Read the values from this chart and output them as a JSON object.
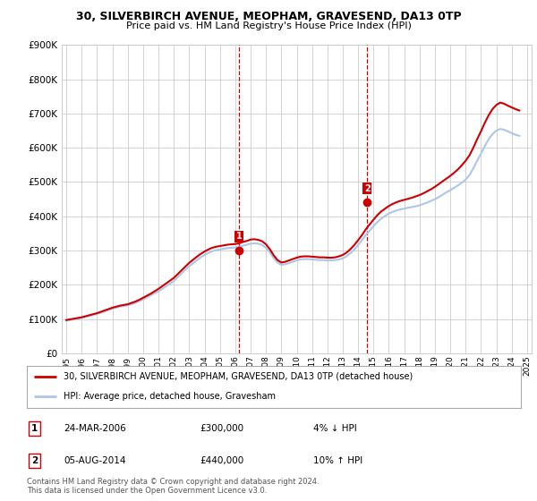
{
  "title": "30, SILVERBIRCH AVENUE, MEOPHAM, GRAVESEND, DA13 0TP",
  "subtitle": "Price paid vs. HM Land Registry's House Price Index (HPI)",
  "legend_line1": "30, SILVERBIRCH AVENUE, MEOPHAM, GRAVESEND, DA13 0TP (detached house)",
  "legend_line2": "HPI: Average price, detached house, Gravesham",
  "transaction1_date": "24-MAR-2006",
  "transaction1_price": "£300,000",
  "transaction1_hpi": "4% ↓ HPI",
  "transaction2_date": "05-AUG-2014",
  "transaction2_price": "£440,000",
  "transaction2_hpi": "10% ↑ HPI",
  "footer": "Contains HM Land Registry data © Crown copyright and database right 2024.\nThis data is licensed under the Open Government Licence v3.0.",
  "hpi_color": "#aec6e8",
  "price_color": "#cc0000",
  "marker_color": "#cc0000",
  "dashed_line_color": "#cc0000",
  "background_color": "#ffffff",
  "plot_bg_color": "#ffffff",
  "grid_color": "#cccccc",
  "ylim": [
    0,
    900000
  ],
  "yticks": [
    0,
    100000,
    200000,
    300000,
    400000,
    500000,
    600000,
    700000,
    800000,
    900000
  ],
  "ytick_labels": [
    "£0",
    "£100K",
    "£200K",
    "£300K",
    "£400K",
    "£500K",
    "£600K",
    "£700K",
    "£800K",
    "£900K"
  ],
  "x_start_year": 1995,
  "x_end_year": 2025,
  "transaction1_year": 2006.23,
  "transaction2_year": 2014.59,
  "transaction1_price_val": 300000,
  "transaction2_price_val": 440000,
  "hpi_years": [
    1995,
    1995.25,
    1995.5,
    1995.75,
    1996,
    1996.25,
    1996.5,
    1996.75,
    1997,
    1997.25,
    1997.5,
    1997.75,
    1998,
    1998.25,
    1998.5,
    1998.75,
    1999,
    1999.25,
    1999.5,
    1999.75,
    2000,
    2000.25,
    2000.5,
    2000.75,
    2001,
    2001.25,
    2001.5,
    2001.75,
    2002,
    2002.25,
    2002.5,
    2002.75,
    2003,
    2003.25,
    2003.5,
    2003.75,
    2004,
    2004.25,
    2004.5,
    2004.75,
    2005,
    2005.25,
    2005.5,
    2005.75,
    2006,
    2006.25,
    2006.5,
    2006.75,
    2007,
    2007.25,
    2007.5,
    2007.75,
    2008,
    2008.25,
    2008.5,
    2008.75,
    2009,
    2009.25,
    2009.5,
    2009.75,
    2010,
    2010.25,
    2010.5,
    2010.75,
    2011,
    2011.25,
    2011.5,
    2011.75,
    2012,
    2012.25,
    2012.5,
    2012.75,
    2013,
    2013.25,
    2013.5,
    2013.75,
    2014,
    2014.25,
    2014.5,
    2014.75,
    2015,
    2015.25,
    2015.5,
    2015.75,
    2016,
    2016.25,
    2016.5,
    2016.75,
    2017,
    2017.25,
    2017.5,
    2017.75,
    2018,
    2018.25,
    2018.5,
    2018.75,
    2019,
    2019.25,
    2019.5,
    2019.75,
    2020,
    2020.25,
    2020.5,
    2020.75,
    2021,
    2021.25,
    2021.5,
    2021.75,
    2022,
    2022.25,
    2022.5,
    2022.75,
    2023,
    2023.25,
    2023.5,
    2023.75,
    2024,
    2024.25,
    2024.5
  ],
  "hpi_values": [
    95000,
    97000,
    99000,
    101000,
    103000,
    106000,
    109000,
    112000,
    115000,
    118000,
    122000,
    126000,
    130000,
    133000,
    136000,
    138000,
    140000,
    143000,
    147000,
    152000,
    157000,
    163000,
    169000,
    175000,
    181000,
    188000,
    196000,
    203000,
    211000,
    222000,
    233000,
    244000,
    254000,
    263000,
    272000,
    280000,
    287000,
    293000,
    298000,
    301000,
    303000,
    305000,
    307000,
    308000,
    309000,
    311000,
    314000,
    317000,
    320000,
    321000,
    320000,
    316000,
    308000,
    295000,
    278000,
    265000,
    258000,
    260000,
    263000,
    267000,
    271000,
    274000,
    275000,
    275000,
    274000,
    273000,
    272000,
    272000,
    271000,
    271000,
    272000,
    274000,
    277000,
    283000,
    292000,
    303000,
    316000,
    330000,
    345000,
    358000,
    371000,
    383000,
    393000,
    401000,
    408000,
    413000,
    417000,
    420000,
    422000,
    425000,
    427000,
    429000,
    432000,
    436000,
    440000,
    445000,
    450000,
    456000,
    463000,
    470000,
    476000,
    483000,
    490000,
    498000,
    507000,
    520000,
    540000,
    562000,
    583000,
    605000,
    625000,
    640000,
    650000,
    655000,
    653000,
    648000,
    643000,
    638000,
    635000
  ],
  "price_years": [
    1995,
    1995.25,
    1995.5,
    1995.75,
    1996,
    1996.25,
    1996.5,
    1996.75,
    1997,
    1997.25,
    1997.5,
    1997.75,
    1998,
    1998.25,
    1998.5,
    1998.75,
    1999,
    1999.25,
    1999.5,
    1999.75,
    2000,
    2000.25,
    2000.5,
    2000.75,
    2001,
    2001.25,
    2001.5,
    2001.75,
    2002,
    2002.25,
    2002.5,
    2002.75,
    2003,
    2003.25,
    2003.5,
    2003.75,
    2004,
    2004.25,
    2004.5,
    2004.75,
    2005,
    2005.25,
    2005.5,
    2005.75,
    2006,
    2006.25,
    2006.5,
    2006.75,
    2007,
    2007.25,
    2007.5,
    2007.75,
    2008,
    2008.25,
    2008.5,
    2008.75,
    2009,
    2009.25,
    2009.5,
    2009.75,
    2010,
    2010.25,
    2010.5,
    2010.75,
    2011,
    2011.25,
    2011.5,
    2011.75,
    2012,
    2012.25,
    2012.5,
    2012.75,
    2013,
    2013.25,
    2013.5,
    2013.75,
    2014,
    2014.25,
    2014.5,
    2014.75,
    2015,
    2015.25,
    2015.5,
    2015.75,
    2016,
    2016.25,
    2016.5,
    2016.75,
    2017,
    2017.25,
    2017.5,
    2017.75,
    2018,
    2018.25,
    2018.5,
    2018.75,
    2019,
    2019.25,
    2019.5,
    2019.75,
    2020,
    2020.25,
    2020.5,
    2020.75,
    2021,
    2021.25,
    2021.5,
    2021.75,
    2022,
    2022.25,
    2022.5,
    2022.75,
    2023,
    2023.25,
    2023.5,
    2023.75,
    2024,
    2024.25,
    2024.5
  ],
  "price_values": [
    97000,
    99000,
    101000,
    103000,
    105000,
    108000,
    111000,
    114000,
    117000,
    121000,
    125000,
    129000,
    133000,
    136000,
    139000,
    141000,
    143000,
    147000,
    151000,
    156000,
    162000,
    168000,
    174000,
    181000,
    188000,
    196000,
    204000,
    212000,
    220000,
    231000,
    242000,
    253000,
    264000,
    273000,
    282000,
    290000,
    297000,
    303000,
    308000,
    311000,
    313000,
    315000,
    317000,
    318000,
    319000,
    321000,
    325000,
    328000,
    332000,
    333000,
    331000,
    327000,
    318000,
    304000,
    286000,
    272000,
    265000,
    267000,
    271000,
    275000,
    279000,
    282000,
    283000,
    283000,
    282000,
    281000,
    280000,
    280000,
    279000,
    279000,
    280000,
    283000,
    287000,
    294000,
    304000,
    316000,
    330000,
    345000,
    362000,
    376000,
    390000,
    403000,
    414000,
    422000,
    430000,
    436000,
    441000,
    445000,
    448000,
    451000,
    454000,
    458000,
    462000,
    467000,
    473000,
    479000,
    486000,
    494000,
    502000,
    510000,
    518000,
    527000,
    537000,
    549000,
    562000,
    578000,
    600000,
    625000,
    648000,
    673000,
    695000,
    713000,
    725000,
    732000,
    729000,
    723000,
    718000,
    713000,
    709000
  ]
}
